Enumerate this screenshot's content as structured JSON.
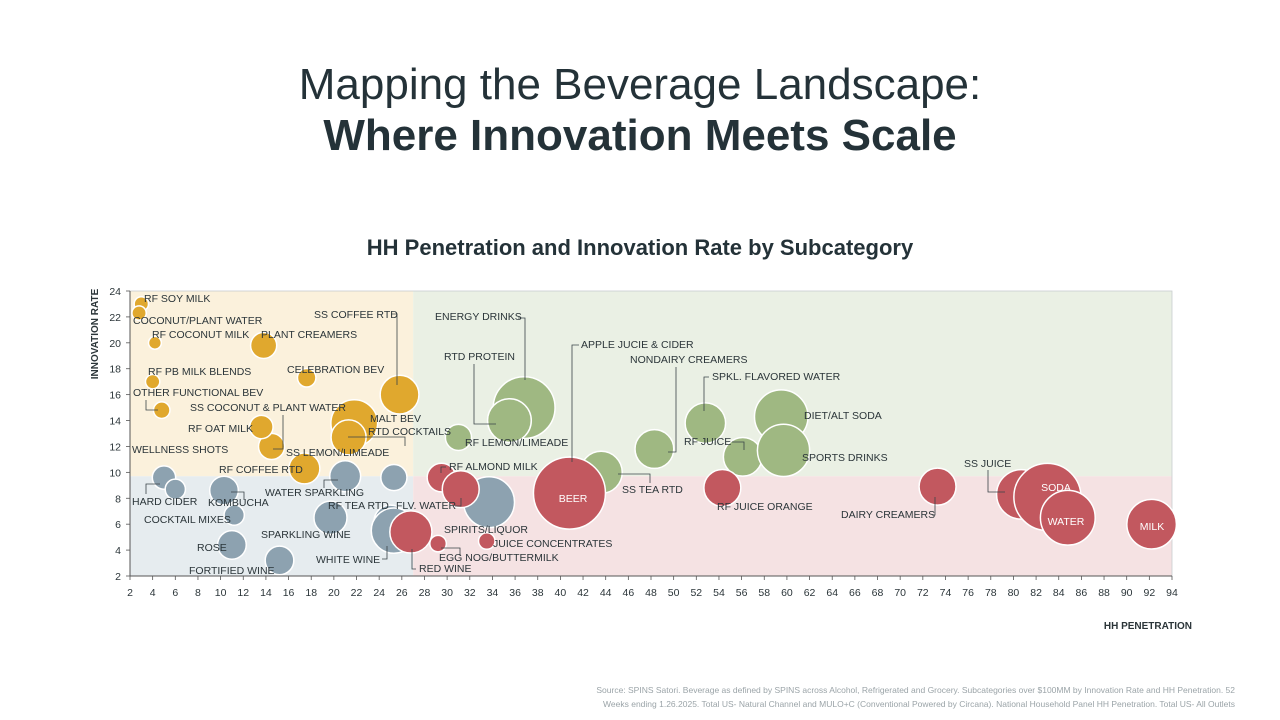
{
  "title": {
    "line1": "Mapping the Beverage Landscape:",
    "line2": "Where Innovation Meets Scale"
  },
  "source": {
    "line1": "Source: SPINS Satori. Beverage as defined by SPINS across Alcohol, Refrigerated and Grocery. Subcategories over $100MM by Innovation Rate and HH Penetration. 52",
    "line2": "Weeks ending 1.26.2025. Total US- Natural Channel and MULO+C (Conventional Powered by Circana). National Household Panel HH Penetration. Total US- All Outlets"
  },
  "chart_data": {
    "type": "scatter",
    "title": "HH Penetration and Innovation Rate by Subcategory",
    "xlabel": "HH PENETRATION",
    "ylabel": "INNOVATION RATE",
    "xlim": [
      2,
      94
    ],
    "ylim": [
      2,
      24
    ],
    "x_ticks": [
      2,
      4,
      6,
      8,
      10,
      12,
      14,
      16,
      18,
      20,
      22,
      24,
      26,
      28,
      30,
      32,
      34,
      36,
      38,
      40,
      42,
      44,
      46,
      48,
      50,
      52,
      54,
      56,
      58,
      60,
      62,
      64,
      66,
      68,
      70,
      72,
      74,
      76,
      78,
      80,
      82,
      84,
      86,
      88,
      90,
      92,
      94
    ],
    "y_ticks": [
      2,
      4,
      6,
      8,
      10,
      12,
      14,
      16,
      18,
      20,
      22,
      24
    ],
    "grid": false,
    "quadrants": [
      {
        "name": "low-penetration-high-innovation",
        "x": [
          2,
          27
        ],
        "y": [
          9.7,
          24
        ],
        "color": "#fbf1dc"
      },
      {
        "name": "high-penetration-high-innovation",
        "x": [
          27,
          94
        ],
        "y": [
          9.7,
          24
        ],
        "color": "#eaf0e4"
      },
      {
        "name": "low-penetration-low-innovation",
        "x": [
          2,
          27
        ],
        "y": [
          2,
          9.7
        ],
        "color": "#e6ecef"
      },
      {
        "name": "high-penetration-low-innovation",
        "x": [
          27,
          94
        ],
        "y": [
          2,
          9.7
        ],
        "color": "#f5e2e3"
      }
    ],
    "group_colors": {
      "yellow": "#e0a82e",
      "green": "#9fb882",
      "gray": "#8da2b0",
      "red": "#c2585f"
    },
    "points": [
      {
        "label": "RF SOY MILK",
        "x": 3.0,
        "y": 23.0,
        "size": 1.5,
        "group": "yellow"
      },
      {
        "label": "COCONUT/PLANT WATER",
        "x": 2.8,
        "y": 22.3,
        "size": 1.5,
        "group": "yellow"
      },
      {
        "label": "RF COCONUT MILK",
        "x": 4.2,
        "y": 20.0,
        "size": 1.2,
        "group": "yellow"
      },
      {
        "label": "PLANT CREAMERS",
        "x": 13.8,
        "y": 19.8,
        "size": 5,
        "group": "yellow"
      },
      {
        "label": "CELEBRATION BEV",
        "x": 17.6,
        "y": 17.3,
        "size": 2.5,
        "group": "yellow"
      },
      {
        "label": "RF PB MILK BLENDS",
        "x": 4.0,
        "y": 17.0,
        "size": 1.5,
        "group": "yellow"
      },
      {
        "label": "SS COFFEE RTD",
        "x": 25.8,
        "y": 16.0,
        "size": 11,
        "group": "yellow"
      },
      {
        "label": "OTHER FUNCTIONAL BEV",
        "x": 4.8,
        "y": 14.8,
        "size": 2,
        "group": "yellow"
      },
      {
        "label": "SS COCONUT & PLANT WATER",
        "x": 14.5,
        "y": 12.0,
        "size": 5,
        "group": "yellow"
      },
      {
        "label": "MALT BEV",
        "x": 21.8,
        "y": 13.8,
        "size": 16,
        "group": "yellow"
      },
      {
        "label": "RF OAT MILK",
        "x": 13.6,
        "y": 13.5,
        "size": 4,
        "group": "yellow"
      },
      {
        "label": "RTD COCKTAILS",
        "x": 21.3,
        "y": 12.7,
        "size": 9,
        "group": "yellow"
      },
      {
        "label": "RF COFFEE RTD",
        "x": 17.4,
        "y": 10.3,
        "size": 7,
        "group": "yellow"
      },
      {
        "label": "ENERGY DRINKS",
        "x": 36.8,
        "y": 15.0,
        "size": 28,
        "group": "green"
      },
      {
        "label": "RTD PROTEIN",
        "x": 35.5,
        "y": 14.0,
        "size": 14,
        "group": "green"
      },
      {
        "label": "RF LEMON/LIMEADE",
        "x": 31.0,
        "y": 12.7,
        "size": 5,
        "group": "green"
      },
      {
        "label": "APPLE JUCIE & CIDER",
        "x": 41.0,
        "y": 10.2,
        "size": 5,
        "group": "green"
      },
      {
        "label": "SS TEA RTD",
        "x": 43.6,
        "y": 10.0,
        "size": 13,
        "group": "green"
      },
      {
        "label": "NONDAIRY CREAMERS",
        "x": 48.3,
        "y": 11.8,
        "size": 11,
        "group": "green"
      },
      {
        "label": "RF JUICE",
        "x": 56.1,
        "y": 11.2,
        "size": 11,
        "group": "green"
      },
      {
        "label": "SPKL. FLAVORED WATER",
        "x": 52.8,
        "y": 13.8,
        "size": 12,
        "group": "green"
      },
      {
        "label": "DIET/ALT SODA",
        "x": 59.5,
        "y": 14.3,
        "size": 21,
        "group": "green"
      },
      {
        "label": "SPORTS DRINKS",
        "x": 59.7,
        "y": 11.7,
        "size": 20,
        "group": "green"
      },
      {
        "label": "WELLNESS SHOTS",
        "x": 5.0,
        "y": 9.6,
        "size": 4,
        "group": "gray"
      },
      {
        "label": "HARD CIDER",
        "x": 6.0,
        "y": 8.7,
        "size": 3,
        "group": "gray"
      },
      {
        "label": "KOMBUCHA",
        "x": 10.3,
        "y": 8.6,
        "size": 6,
        "group": "gray"
      },
      {
        "label": "WATER SPARKLING",
        "x": 21.0,
        "y": 9.7,
        "size": 7,
        "group": "gray"
      },
      {
        "label": "SS LEMON/LIMEADE",
        "x": 25.3,
        "y": 9.6,
        "size": 5,
        "group": "gray"
      },
      {
        "label": "COCKTAIL MIXES",
        "x": 11.2,
        "y": 6.7,
        "size": 3,
        "group": "gray"
      },
      {
        "label": "SPARKLING WINE",
        "x": 19.7,
        "y": 6.5,
        "size": 8,
        "group": "gray"
      },
      {
        "label": "RF TEA RTD",
        "x": 25.0,
        "y": 6.2,
        "size": 8,
        "group": "gray"
      },
      {
        "label": "ROSE",
        "x": 11.0,
        "y": 4.4,
        "size": 6,
        "group": "gray"
      },
      {
        "label": "FORTIFIED WINE",
        "x": 15.2,
        "y": 3.2,
        "size": 6,
        "group": "gray"
      },
      {
        "label": "WHITE WINE",
        "x": 25.3,
        "y": 5.5,
        "size": 15,
        "group": "gray"
      },
      {
        "label": "SPIRITS/LIQUOR",
        "x": 33.7,
        "y": 7.7,
        "size": 19,
        "group": "gray"
      },
      {
        "label": "RF ALMOND MILK",
        "x": 29.5,
        "y": 9.6,
        "size": 6,
        "group": "red"
      },
      {
        "label": "FLV. WATER",
        "x": 31.2,
        "y": 8.7,
        "size": 10,
        "group": "red"
      },
      {
        "label": "RED WINE",
        "x": 26.8,
        "y": 5.4,
        "size": 13,
        "group": "red"
      },
      {
        "label": "EGG NOG/BUTTERMILK",
        "x": 29.2,
        "y": 4.5,
        "size": 2,
        "group": "red"
      },
      {
        "label": "JUICE CONCENTRATES",
        "x": 33.5,
        "y": 4.7,
        "size": 2,
        "group": "red"
      },
      {
        "label": "BEER",
        "x": 40.8,
        "y": 8.4,
        "size": 38,
        "group": "red"
      },
      {
        "label": "RF JUICE ORANGE",
        "x": 54.3,
        "y": 8.8,
        "size": 10,
        "group": "red"
      },
      {
        "label": "DAIRY CREAMERS",
        "x": 73.3,
        "y": 8.9,
        "size": 10,
        "group": "red"
      },
      {
        "label": "SS JUICE",
        "x": 80.7,
        "y": 8.3,
        "size": 18,
        "group": "red"
      },
      {
        "label": "SODA",
        "x": 83.0,
        "y": 8.1,
        "size": 33,
        "group": "red"
      },
      {
        "label": "WATER",
        "x": 84.8,
        "y": 6.5,
        "size": 22,
        "group": "red"
      },
      {
        "label": "MILK",
        "x": 92.2,
        "y": 6.0,
        "size": 18,
        "group": "red"
      }
    ]
  }
}
